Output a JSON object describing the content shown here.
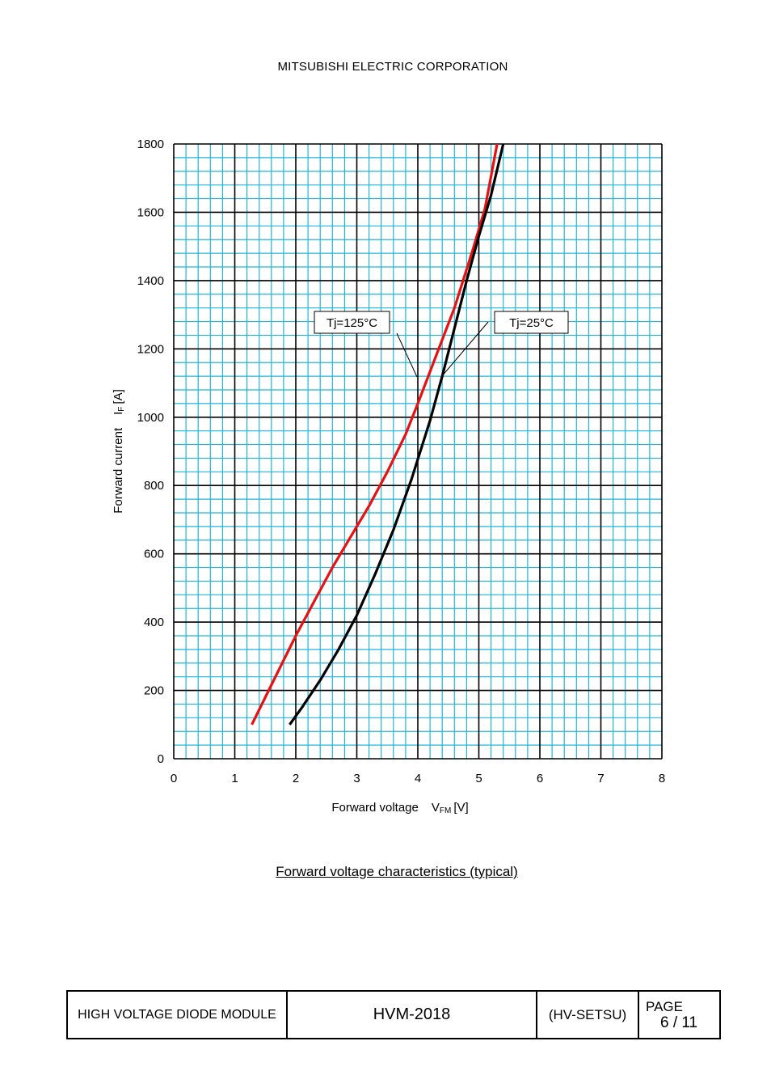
{
  "header": {
    "company": "MITSUBISHI ELECTRIC CORPORATION"
  },
  "caption": "Forward voltage characteristics (typical)",
  "footer": {
    "product": "HIGH VOLTAGE DIODE MODULE",
    "model": "HVM-2018",
    "code": "(HV-SETSU)",
    "page_label": "PAGE",
    "page_value": "6 / 11"
  },
  "colors": {
    "grid_minor": "#1fb6d8",
    "grid_major": "#000000",
    "tj125": "#e81010",
    "tj25": "#000000"
  },
  "chart_data": {
    "type": "line",
    "title": "",
    "xlabel": {
      "main": "Forward voltage",
      "symbol": "V",
      "sub": "FM",
      "unit": "[V]"
    },
    "ylabel": {
      "main": "Forward current",
      "symbol": "I",
      "sub": "F",
      "unit": "[A]"
    },
    "xlim": [
      0,
      8
    ],
    "ylim": [
      0,
      1800
    ],
    "x_ticks": [
      "0",
      "1",
      "2",
      "3",
      "4",
      "5",
      "6",
      "7",
      "8"
    ],
    "y_ticks": [
      "0",
      "200",
      "400",
      "600",
      "800",
      "1000",
      "1200",
      "1400",
      "1600",
      "1800"
    ],
    "grid": true,
    "series": [
      {
        "name": "Tj=125°C",
        "color": "#e81010",
        "points": [
          [
            1.28,
            100
          ],
          [
            1.5,
            180
          ],
          [
            1.75,
            270
          ],
          [
            2.0,
            360
          ],
          [
            2.3,
            460
          ],
          [
            2.6,
            560
          ],
          [
            2.9,
            650
          ],
          [
            3.2,
            740
          ],
          [
            3.5,
            840
          ],
          [
            3.8,
            950
          ],
          [
            4.0,
            1040
          ],
          [
            4.3,
            1180
          ],
          [
            4.6,
            1320
          ],
          [
            4.9,
            1490
          ],
          [
            5.1,
            1610
          ],
          [
            5.3,
            1800
          ]
        ]
      },
      {
        "name": "Tj=25°C",
        "color": "#000000",
        "points": [
          [
            1.9,
            100
          ],
          [
            2.1,
            150
          ],
          [
            2.4,
            230
          ],
          [
            2.7,
            320
          ],
          [
            3.0,
            420
          ],
          [
            3.3,
            540
          ],
          [
            3.6,
            670
          ],
          [
            3.9,
            820
          ],
          [
            4.2,
            990
          ],
          [
            4.4,
            1120
          ],
          [
            4.6,
            1260
          ],
          [
            4.8,
            1400
          ],
          [
            5.0,
            1530
          ],
          [
            5.2,
            1650
          ],
          [
            5.4,
            1800
          ]
        ]
      }
    ],
    "annotations": [
      {
        "label": "Tj=125°C",
        "series": "Tj=125°C"
      },
      {
        "label": "Tj=25°C",
        "series": "Tj=25°C"
      }
    ]
  }
}
